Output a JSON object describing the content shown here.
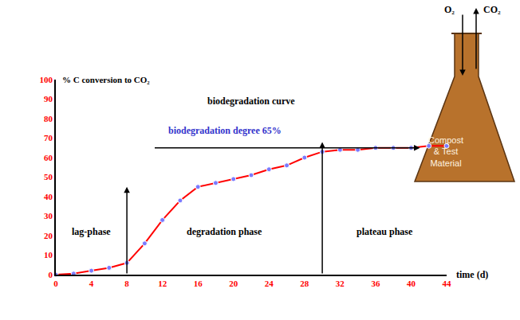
{
  "chart_data": {
    "type": "line",
    "y_label": "% C conversion to CO₂",
    "x_label": "time (d)",
    "x": [
      0,
      2,
      4,
      6,
      8,
      10,
      12,
      14,
      16,
      18,
      20,
      22,
      24,
      26,
      28,
      30,
      32,
      34,
      36,
      38,
      40,
      42,
      44
    ],
    "values": [
      0,
      0.5,
      2,
      3.5,
      6,
      16,
      28,
      38,
      45,
      47,
      49,
      51,
      54,
      56,
      60,
      63,
      64,
      64,
      65,
      65,
      65,
      66,
      66
    ],
    "color": "#ff0000",
    "marker": "circle",
    "xlim": [
      0,
      44
    ],
    "ylim": [
      0,
      100
    ],
    "xticks": [
      0,
      4,
      8,
      12,
      16,
      20,
      24,
      28,
      32,
      36,
      40,
      44
    ],
    "yticks": [
      0,
      10,
      20,
      30,
      40,
      50,
      60,
      70,
      80,
      90,
      100
    ],
    "grid": false,
    "annotations": [
      "biodegradation curve",
      "biodegradation degree 65%",
      "lag-phase",
      "degradation phase",
      "plateau phase"
    ],
    "phase_bounds": [
      8,
      30
    ],
    "degree": 65,
    "flask": {
      "label": "Compost & Test Material",
      "inflow": "O₂",
      "outflow": "CO₂"
    }
  }
}
